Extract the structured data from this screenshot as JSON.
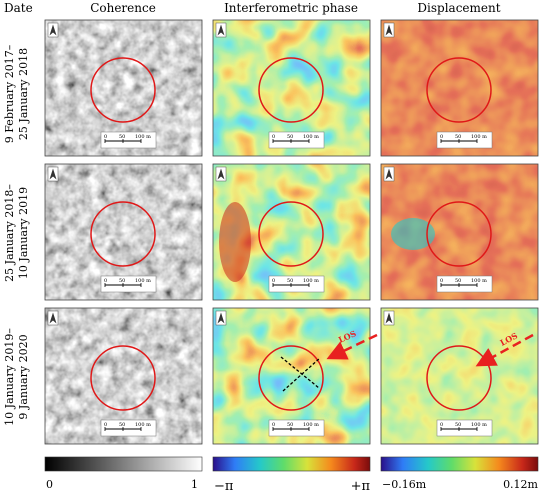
{
  "header": {
    "date_label": "Date",
    "columns": [
      "Coherence",
      "Interferometric phase",
      "Displacement"
    ]
  },
  "rows": [
    {
      "date_line1": "9 February 2017–",
      "date_line2": "25 January 2018"
    },
    {
      "date_line1": "25 January 2018–",
      "date_line2": "10 January 2019"
    },
    {
      "date_line1": "10 January 2019–",
      "date_line2": "9 January 2020"
    }
  ],
  "scalebar": {
    "tick0": "0",
    "tick1": "50",
    "tick2": "100 m"
  },
  "los_label": "LOS",
  "colorbars": [
    {
      "min_label": "0",
      "max_label": "1",
      "colors": [
        "#000000",
        "#ffffff"
      ]
    },
    {
      "min_label": "−π",
      "max_label": "+π",
      "colors": [
        "#2a0f8a",
        "#2f7df6",
        "#25c9c9",
        "#5fdc6a",
        "#d8e23a",
        "#f58a1d",
        "#c8281a",
        "#7a0c0c"
      ]
    },
    {
      "min_label": "−0.16m",
      "max_label": "0.12m",
      "colors": [
        "#2a0f8a",
        "#2f7df6",
        "#25c9c9",
        "#5fdc6a",
        "#d8e23a",
        "#f58a1d",
        "#c8281a",
        "#7a0c0c"
      ]
    }
  ],
  "colors": {
    "circle": "#e01818",
    "los_arrow": "#e82020"
  }
}
